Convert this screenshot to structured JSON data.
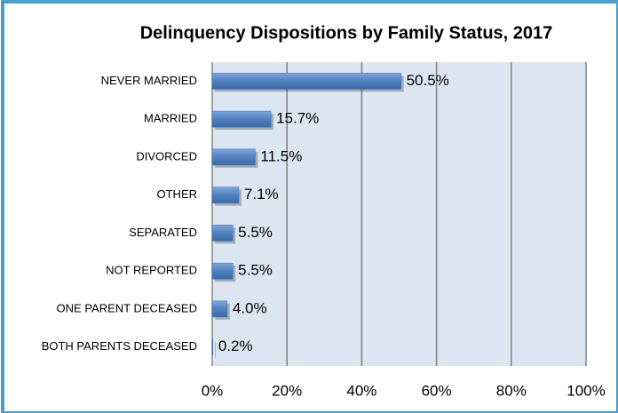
{
  "chart_data": {
    "type": "bar",
    "orientation": "horizontal",
    "title": "Delinquency Dispositions by Family Status, 2017",
    "categories": [
      "NEVER MARRIED",
      "MARRIED",
      "DIVORCED",
      "OTHER",
      "SEPARATED",
      "NOT REPORTED",
      "ONE PARENT DECEASED",
      "BOTH PARENTS DECEASED"
    ],
    "values": [
      50.5,
      15.7,
      11.5,
      7.1,
      5.5,
      5.5,
      4.0,
      0.2
    ],
    "value_labels": [
      "50.5%",
      "15.7%",
      "11.5%",
      "7.1%",
      "5.5%",
      "5.5%",
      "4.0%",
      "0.2%"
    ],
    "color": "#4f81bd",
    "xlim": [
      0,
      100
    ],
    "xticks": [
      {
        "value": 0,
        "label": "0%"
      },
      {
        "value": 20,
        "label": "20%"
      },
      {
        "value": 40,
        "label": "40%"
      },
      {
        "value": 60,
        "label": "60%"
      },
      {
        "value": 80,
        "label": "80%"
      },
      {
        "value": 100,
        "label": "100%"
      }
    ],
    "grid": true
  }
}
